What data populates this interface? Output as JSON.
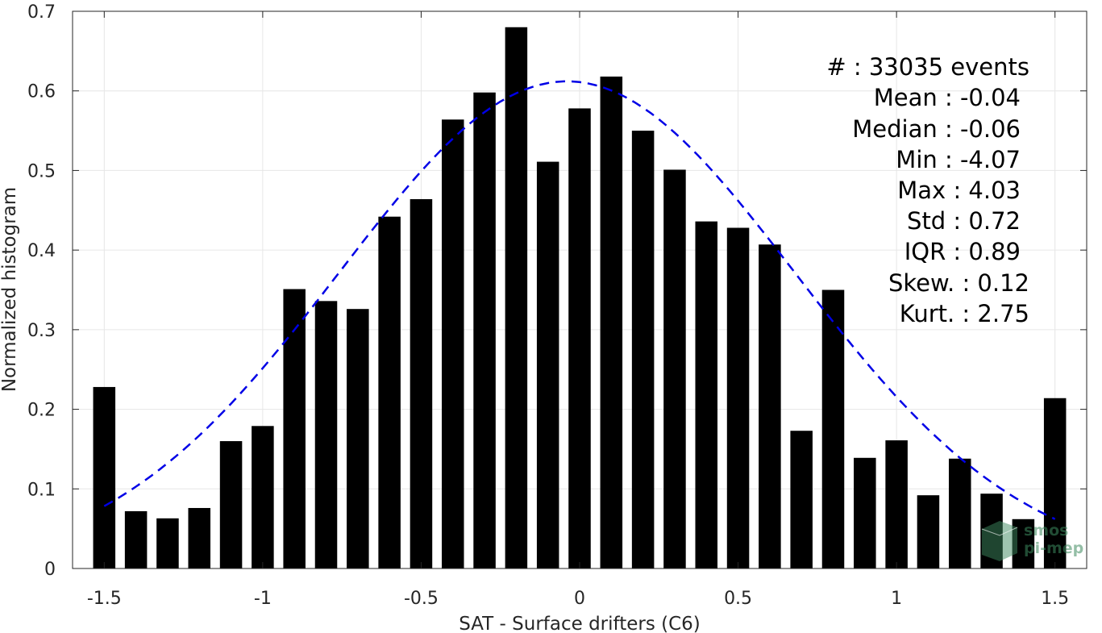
{
  "chart_data": {
    "type": "bar",
    "xlabel": "SAT - Surface drifters (C6)",
    "ylabel": "Normalized histogram",
    "xlim": [
      -1.6,
      1.6
    ],
    "ylim": [
      0,
      0.7
    ],
    "x_ticks": [
      "-1.5",
      "-1",
      "-0.5",
      "0",
      "0.5",
      "1",
      "1.5"
    ],
    "y_ticks": [
      "0",
      "0.1",
      "0.2",
      "0.3",
      "0.4",
      "0.5",
      "0.6",
      "0.7"
    ],
    "grid": true,
    "bar_color": "#000000",
    "bar_width": 0.07,
    "x": [
      -1.5,
      -1.4,
      -1.3,
      -1.2,
      -1.1,
      -1.0,
      -0.9,
      -0.8,
      -0.7,
      -0.6,
      -0.5,
      -0.4,
      -0.3,
      -0.2,
      -0.1,
      0.0,
      0.1,
      0.2,
      0.3,
      0.4,
      0.5,
      0.6,
      0.7,
      0.8,
      0.9,
      1.0,
      1.1,
      1.2,
      1.3,
      1.4,
      1.5
    ],
    "values": [
      0.228,
      0.072,
      0.063,
      0.076,
      0.16,
      0.179,
      0.351,
      0.336,
      0.326,
      0.442,
      0.464,
      0.564,
      0.598,
      0.68,
      0.511,
      0.578,
      0.618,
      0.55,
      0.501,
      0.436,
      0.428,
      0.407,
      0.173,
      0.35,
      0.139,
      0.161,
      0.092,
      0.138,
      0.094,
      0.062,
      0.214
    ],
    "fit": {
      "style": "dashed",
      "color": "#0000e6",
      "mean": -0.04,
      "std": 0.72,
      "peak": 0.612,
      "x_range": [
        -1.5,
        1.5
      ]
    },
    "stats": {
      "events": "#  : 33035 events",
      "mean": "Mean : -0.04",
      "median": "Median : -0.06",
      "min": "Min : -4.07",
      "max": "Max : 4.03",
      "std": "Std : 0.72",
      "iqr": "IQR : 0.89",
      "skew": "Skew. : 0.12",
      "kurt": "Kurt. : 2.75"
    }
  },
  "watermark": {
    "line1": "smos",
    "line2": "pi-mep",
    "color": "#3d8a5f"
  }
}
